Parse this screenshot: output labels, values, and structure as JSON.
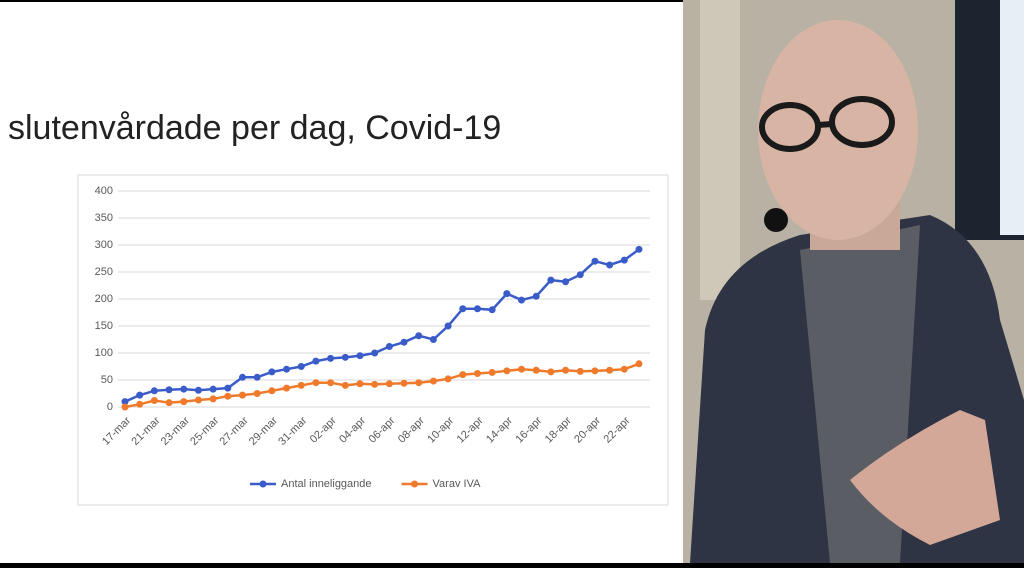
{
  "chart_data": {
    "type": "line",
    "title": "slutenvårdade per dag, Covid-19",
    "categories": [
      "17-mar",
      null,
      "21-mar",
      null,
      "23-mar",
      null,
      "25-mar",
      null,
      "27-mar",
      null,
      "29-mar",
      null,
      "31-mar",
      null,
      "02-apr",
      null,
      "04-apr",
      null,
      "06-apr",
      null,
      "08-apr",
      null,
      "10-apr",
      null,
      "12-apr",
      null,
      "14-apr",
      null,
      "16-apr",
      null,
      "18-apr",
      null,
      "20-apr",
      null,
      "22-apr",
      null
    ],
    "series": [
      {
        "name": "Antal inneliggande",
        "color": "#3a5cc9",
        "values": [
          10,
          22,
          30,
          32,
          33,
          31,
          33,
          35,
          55,
          55,
          65,
          70,
          75,
          85,
          90,
          92,
          95,
          100,
          112,
          120,
          132,
          125,
          150,
          182,
          182,
          180,
          210,
          198,
          205,
          235,
          232,
          245,
          270,
          263,
          272,
          292
        ]
      },
      {
        "name": "Varav IVA",
        "color": "#f07a2c",
        "values": [
          0,
          5,
          12,
          8,
          10,
          13,
          15,
          20,
          22,
          25,
          30,
          35,
          40,
          45,
          45,
          40,
          43,
          42,
          43,
          44,
          45,
          48,
          52,
          60,
          62,
          64,
          67,
          70,
          68,
          65,
          68,
          66,
          67,
          68,
          70,
          80
        ]
      }
    ],
    "ylim": [
      0,
      400
    ],
    "yticks": [
      0,
      50,
      100,
      150,
      200,
      250,
      300,
      350,
      400
    ],
    "grid": true,
    "legend": "bottom"
  }
}
